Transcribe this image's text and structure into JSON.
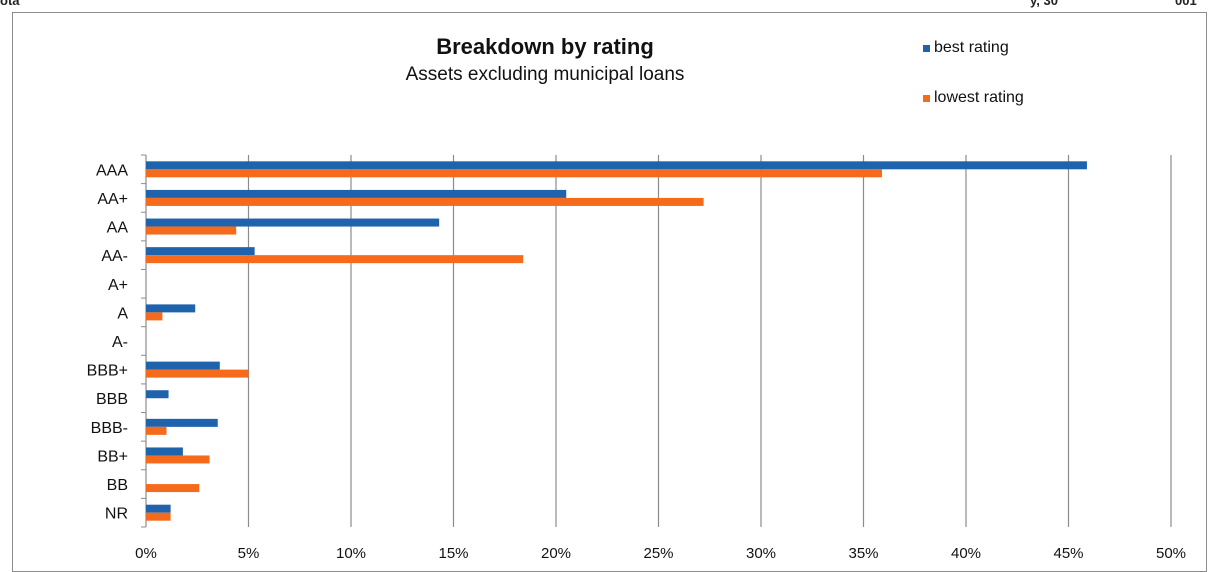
{
  "header_fragments": [
    "ota",
    "y, 30",
    "001"
  ],
  "colors": {
    "best": "#1f63ad",
    "lowest": "#f56a1b",
    "grid": "#8c8c8c"
  },
  "chart_data": {
    "type": "bar",
    "orientation": "horizontal",
    "title": "Breakdown by rating",
    "subtitle": "Assets excluding municipal loans",
    "categories": [
      "AAA",
      "AA+",
      "AA",
      "AA-",
      "A+",
      "A",
      "A-",
      "BBB+",
      "BBB",
      "BBB-",
      "BB+",
      "BB",
      "NR"
    ],
    "series": [
      {
        "name": "best rating",
        "values": [
          45.9,
          20.5,
          14.3,
          5.3,
          0,
          2.4,
          0,
          3.6,
          1.1,
          3.5,
          1.8,
          0,
          1.2
        ]
      },
      {
        "name": "lowest rating",
        "values": [
          35.9,
          27.2,
          4.4,
          18.4,
          0,
          0.8,
          0,
          5.0,
          0,
          1.0,
          3.1,
          2.6,
          1.2
        ]
      }
    ],
    "xlim": [
      0,
      50
    ],
    "x_ticks": [
      "0%",
      "5%",
      "10%",
      "15%",
      "20%",
      "25%",
      "30%",
      "35%",
      "40%",
      "45%",
      "50%"
    ],
    "grid": "vertical",
    "legend": "top-right"
  }
}
